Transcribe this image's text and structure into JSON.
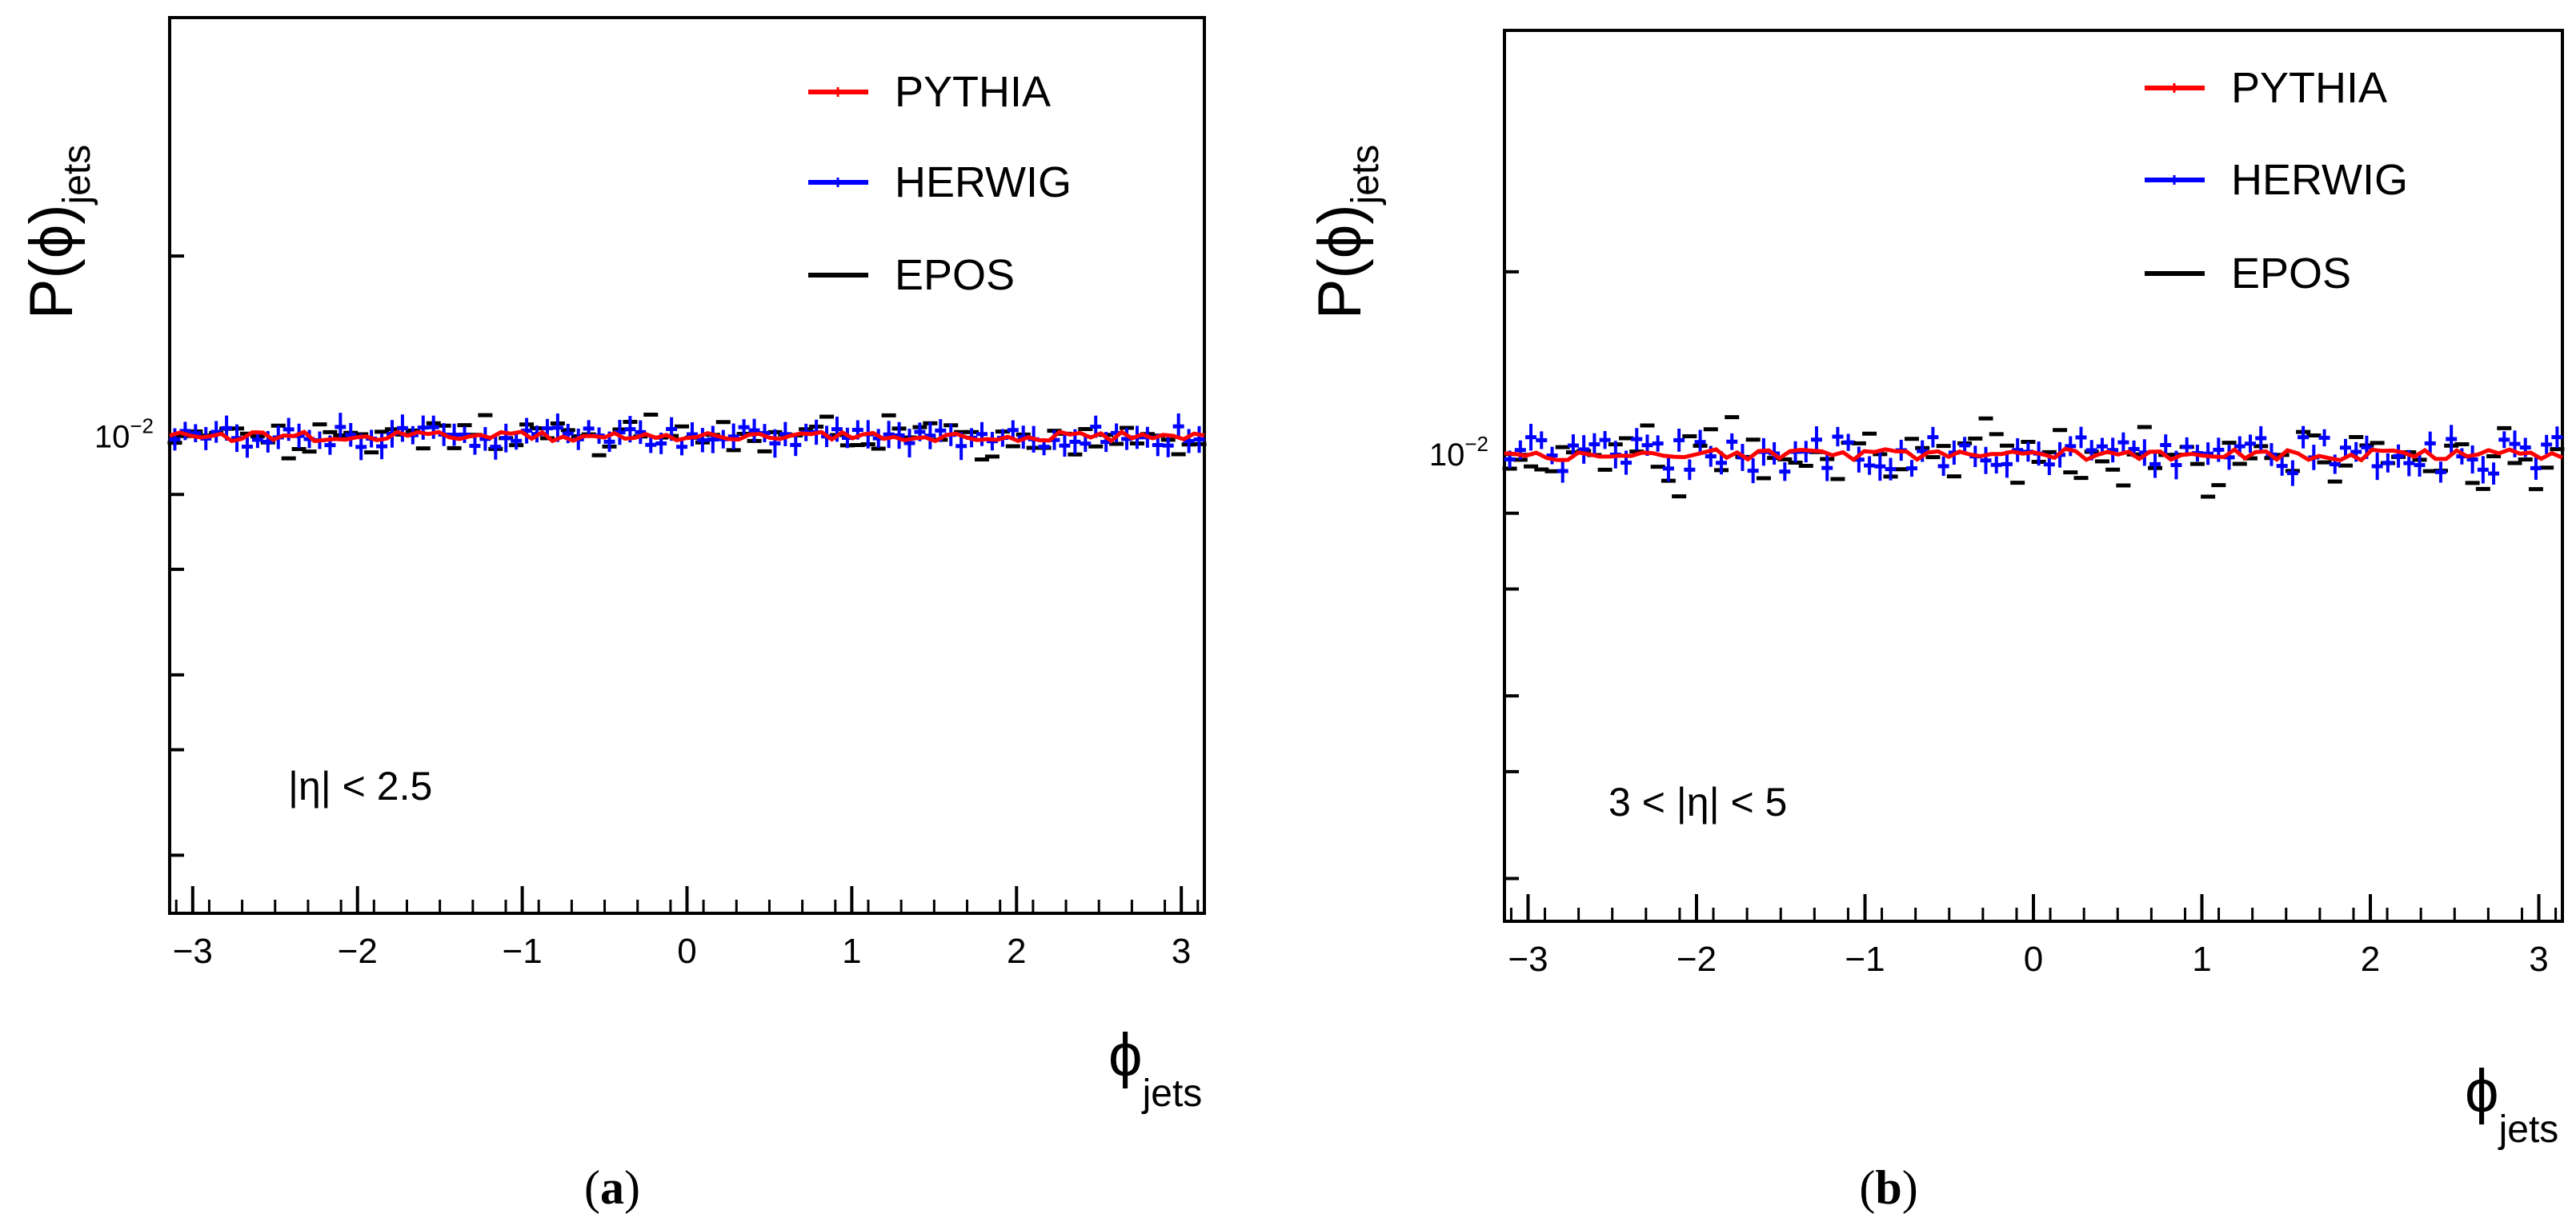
{
  "figure": {
    "panels": [
      {
        "caption_letter": "a",
        "region_label": "|η| < 2.5"
      },
      {
        "caption_letter": "b",
        "region_label": "3 < |η| < 5"
      }
    ]
  },
  "colors": {
    "pythia": "#ff0000",
    "herwig": "#0000ff",
    "epos": "#000000",
    "frame": "#000000"
  },
  "chart_data": [
    {
      "type": "scatter",
      "panel": "a",
      "ylabel": "P(ϕ)",
      "ylabel_subscript": "jets",
      "xlabel": "ϕ",
      "xlabel_subscript": "jets",
      "xlim": [
        -3.14,
        3.14
      ],
      "ylim": [
        0.0016,
        0.05
      ],
      "yscale": "log",
      "xticks": [
        "−3",
        "−2",
        "−1",
        "0",
        "1",
        "2",
        "3"
      ],
      "xtick_values": [
        -3,
        -2,
        -1,
        0,
        1,
        2,
        3
      ],
      "ytick_label": "10",
      "ytick_label_exp": "−2",
      "ytick_value": 0.01,
      "minor_y_values": [
        0.008,
        0.006,
        0.004,
        0.003,
        0.002
      ],
      "grid": false,
      "legend_position": "top-right",
      "annotation": "|η| < 2.5",
      "series": [
        {
          "name": "PYTHIA",
          "color": "#ff0000",
          "style": "line",
          "mean": 0.01,
          "spread": 0.00018
        },
        {
          "name": "HERWIG",
          "color": "#0000ff",
          "style": "points-with-errors",
          "mean": 0.01,
          "spread": 0.0004
        },
        {
          "name": "EPOS",
          "color": "#000000",
          "style": "points",
          "mean": 0.01,
          "spread": 0.0006
        }
      ]
    },
    {
      "type": "scatter",
      "panel": "b",
      "ylabel": "P(ϕ)",
      "ylabel_subscript": "jets",
      "xlabel": "ϕ",
      "xlabel_subscript": "jets",
      "xlim": [
        -3.14,
        3.14
      ],
      "ylim": [
        0.0017,
        0.05
      ],
      "yscale": "log",
      "xticks": [
        "−3",
        "−2",
        "−1",
        "0",
        "1",
        "2",
        "3"
      ],
      "xtick_values": [
        -3,
        -2,
        -1,
        0,
        1,
        2,
        3
      ],
      "ytick_label": "10",
      "ytick_label_exp": "−2",
      "ytick_value": 0.01,
      "minor_y_values": [
        0.008,
        0.006,
        0.004,
        0.003,
        0.002
      ],
      "grid": false,
      "legend_position": "top-right",
      "annotation": "3 < |η| < 5",
      "series": [
        {
          "name": "PYTHIA",
          "color": "#ff0000",
          "style": "line",
          "mean": 0.01,
          "spread": 0.00022
        },
        {
          "name": "HERWIG",
          "color": "#0000ff",
          "style": "points-with-errors",
          "mean": 0.01,
          "spread": 0.0007
        },
        {
          "name": "EPOS",
          "color": "#000000",
          "style": "points",
          "mean": 0.01,
          "spread": 0.0011
        }
      ]
    }
  ]
}
